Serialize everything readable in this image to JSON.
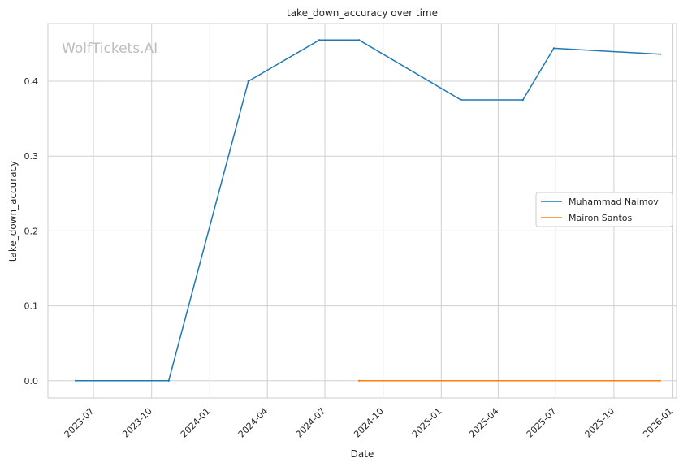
{
  "watermark": "WolfTickets.AI",
  "chart_data": {
    "type": "line",
    "title": "take_down_accuracy over time",
    "xlabel": "Date",
    "ylabel": "take_down_accuracy",
    "x_ticks": [
      "2023-07",
      "2023-10",
      "2024-01",
      "2024-04",
      "2024-07",
      "2024-10",
      "2025-01",
      "2025-04",
      "2025-07",
      "2025-10",
      "2026-01"
    ],
    "x_tick_dates": [
      "2023-07-01",
      "2023-10-01",
      "2024-01-01",
      "2024-04-01",
      "2024-07-01",
      "2024-10-01",
      "2025-01-01",
      "2025-04-01",
      "2025-07-01",
      "2025-10-01",
      "2026-01-01"
    ],
    "y_ticks": [
      "0.0",
      "0.1",
      "0.2",
      "0.3",
      "0.4"
    ],
    "y_tick_values": [
      0.0,
      0.1,
      0.2,
      0.3,
      0.4
    ],
    "xlim": [
      "2023-04-20",
      "2026-01-08"
    ],
    "ylim": [
      -0.023,
      0.477
    ],
    "grid": true,
    "legend_position": "center-right",
    "series": [
      {
        "name": "Muhammad Naimov",
        "color": "#1f77b4",
        "x": [
          "2023-06-03",
          "2023-10-28",
          "2024-03-02",
          "2024-06-22",
          "2024-08-24",
          "2025-02-01",
          "2025-05-10",
          "2025-06-28",
          "2025-12-13"
        ],
        "y": [
          0.0,
          0.0,
          0.4,
          0.455,
          0.455,
          0.375,
          0.375,
          0.444,
          0.436
        ]
      },
      {
        "name": "Mairon Santos",
        "color": "#ff7f0e",
        "x": [
          "2024-08-24",
          "2025-12-13"
        ],
        "y": [
          0.0,
          0.0
        ]
      }
    ]
  }
}
